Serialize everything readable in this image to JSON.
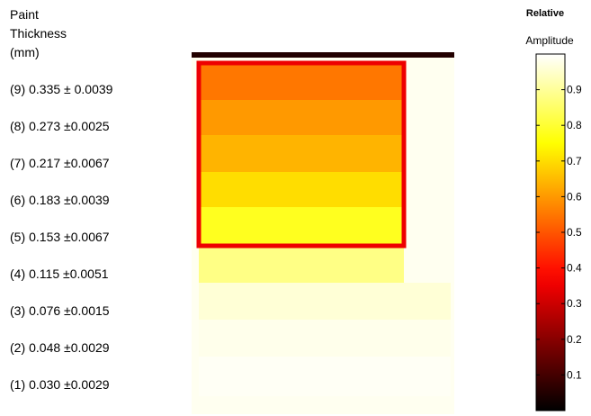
{
  "legend": {
    "heading_line1": "Paint",
    "heading_line2": "Thickness",
    "heading_line3": "(mm)",
    "rows": [
      {
        "num": "(9)",
        "value": "0.335 ± 0.0039"
      },
      {
        "num": "(8)",
        "value": "0.273 ±0.0025"
      },
      {
        "num": "(7)",
        "value": "0.217 ±0.0067"
      },
      {
        "num": "(6)",
        "value": "0.183 ±0.0039"
      },
      {
        "num": "(5)",
        "value": "0.153 ±0.0067"
      },
      {
        "num": "(4)",
        "value": "0.115 ±0.0051"
      },
      {
        "num": "(3)",
        "value": "0.076 ±0.0015"
      },
      {
        "num": "(2)",
        "value": "0.048 ±0.0029"
      },
      {
        "num": "(1)",
        "value": "0.030 ±0.0029"
      }
    ]
  },
  "colorbar": {
    "title_line1": "Relative",
    "title_line2": "Amplitude",
    "ticks": [
      "0.1",
      "0.2",
      "0.3",
      "0.4",
      "0.5",
      "0.6",
      "0.7",
      "0.8",
      "0.9"
    ],
    "range": [
      0,
      1
    ],
    "colormap": "hot"
  },
  "chart_data": {
    "type": "heatmap",
    "colormap": "hot",
    "value_label": "Relative Amplitude",
    "categories": [
      "(1)",
      "(2)",
      "(3)",
      "(4)",
      "(5)",
      "(6)",
      "(7)",
      "(8)",
      "(9)"
    ],
    "thickness_mm": [
      0.03,
      0.048,
      0.076,
      0.115,
      0.153,
      0.183,
      0.217,
      0.273,
      0.335
    ],
    "thickness_uncertainty_mm": [
      0.0029,
      0.0029,
      0.0015,
      0.0051,
      0.0067,
      0.0039,
      0.0067,
      0.0025,
      0.0039
    ],
    "relative_amplitude": [
      0.99,
      0.98,
      0.96,
      0.88,
      0.78,
      0.7,
      0.64,
      0.6,
      0.55
    ],
    "colorbar_range": [
      0,
      1
    ]
  }
}
